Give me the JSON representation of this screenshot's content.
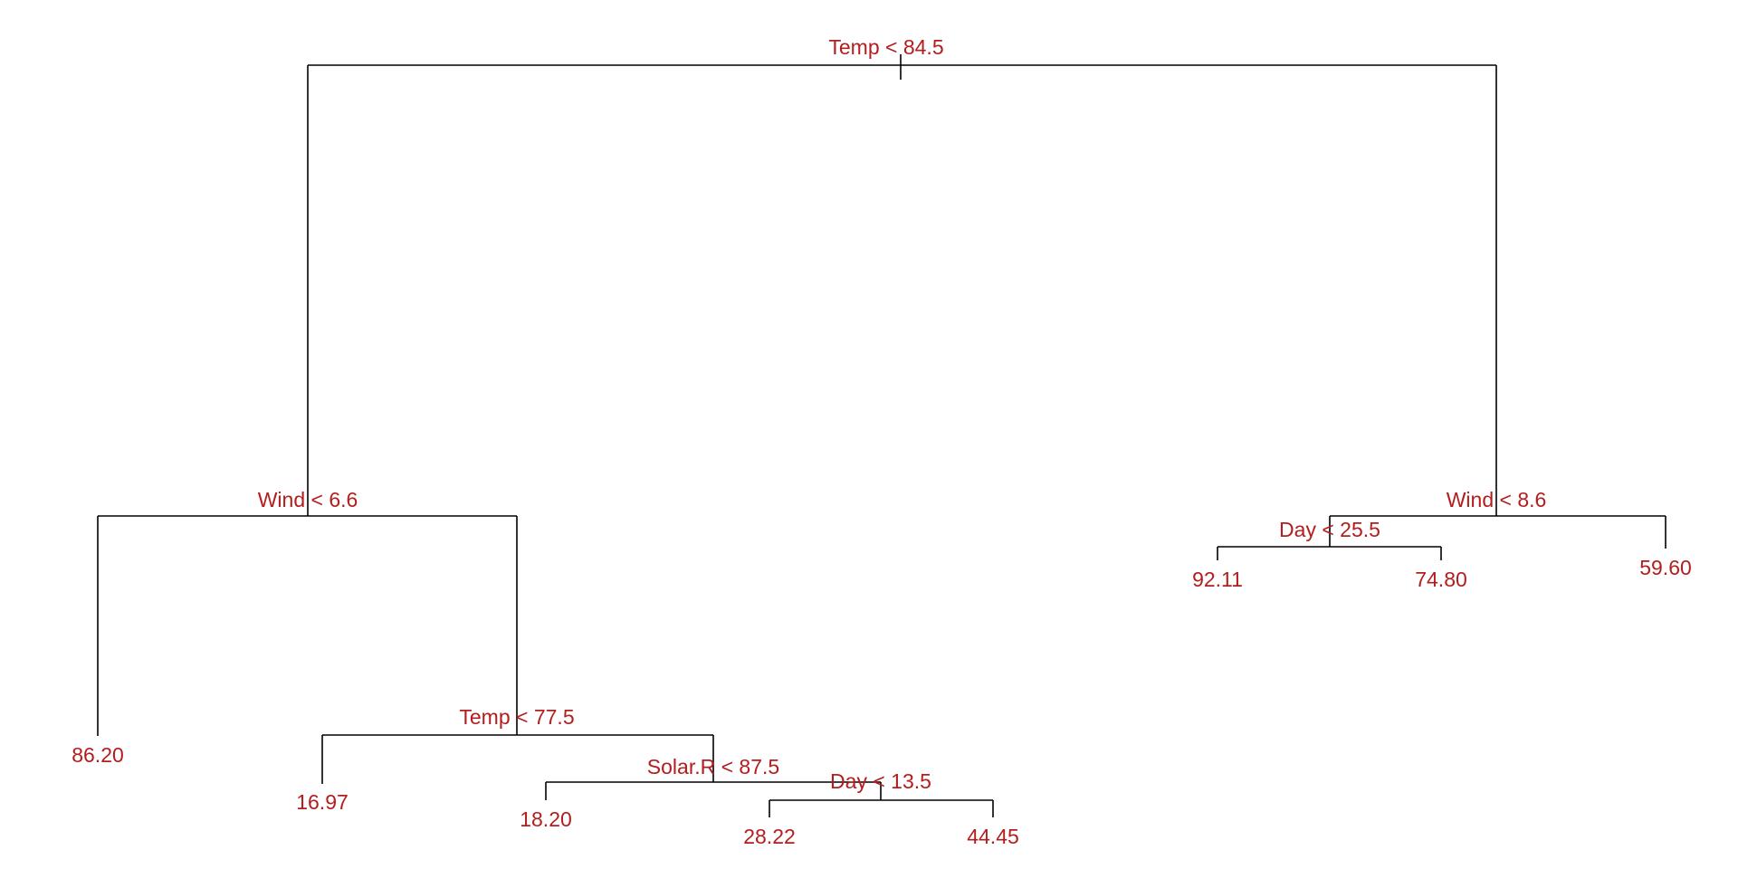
{
  "colors": {
    "line": "#000000",
    "label": "#b41d1d",
    "background": "#ffffff"
  },
  "tree": {
    "split": "Temp < 84.5",
    "left": {
      "split": "Wind < 6.6",
      "left": {
        "leaf": "86.20"
      },
      "right": {
        "split": "Temp < 77.5",
        "left": {
          "leaf": "16.97"
        },
        "right": {
          "split": "Solar.R < 87.5",
          "left": {
            "leaf": "18.20"
          },
          "right": {
            "split": "Day < 13.5",
            "left": {
              "leaf": "28.22"
            },
            "right": {
              "leaf": "44.45"
            }
          }
        }
      }
    },
    "right": {
      "split": "Wind < 8.6",
      "left": {
        "split": "Day < 25.5",
        "left": {
          "leaf": "92.11"
        },
        "right": {
          "leaf": "74.80"
        }
      },
      "right": {
        "leaf": "59.60"
      }
    }
  }
}
